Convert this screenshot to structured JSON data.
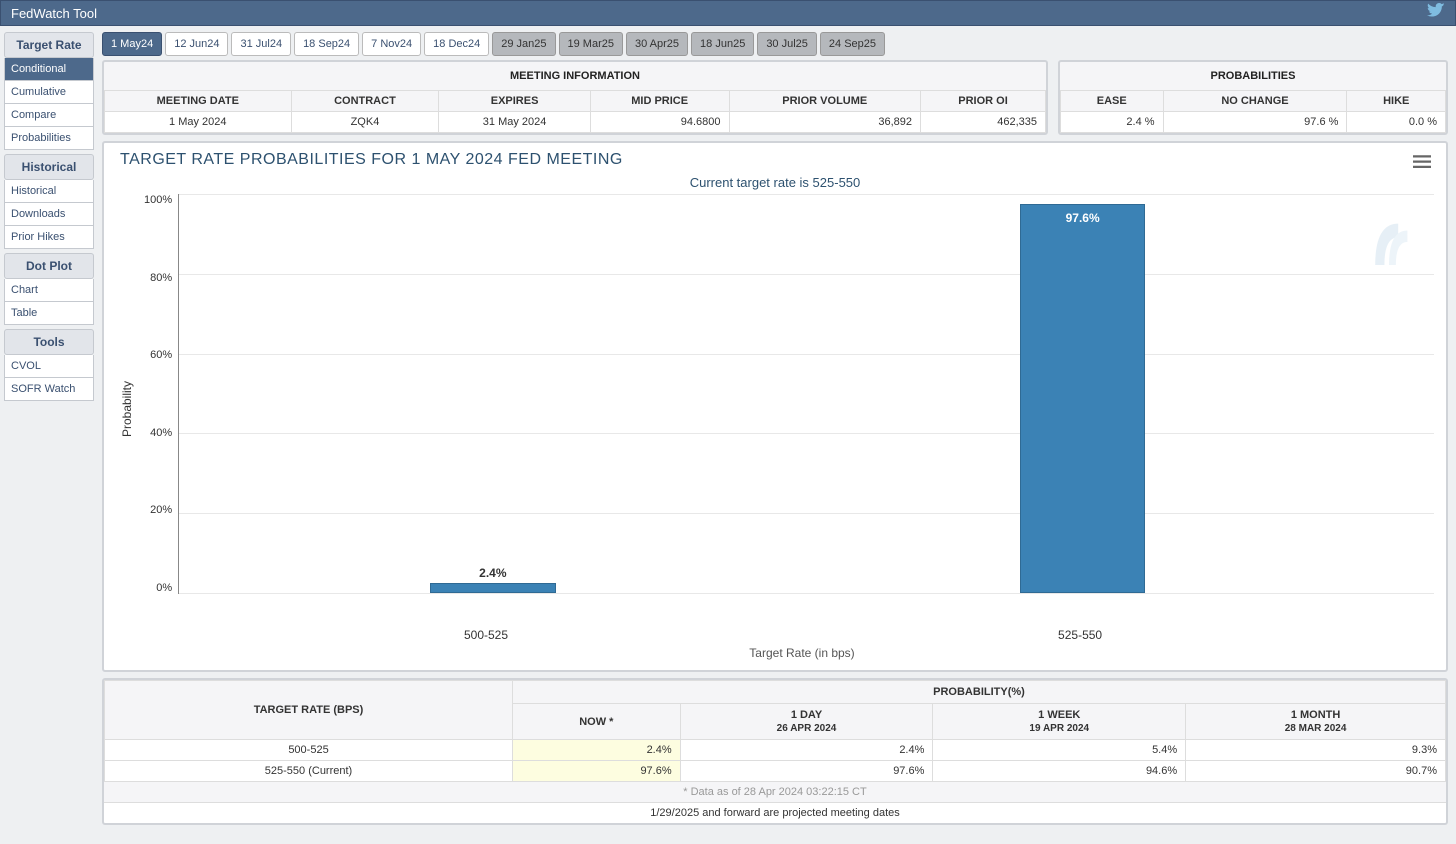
{
  "header": {
    "title": "FedWatch Tool"
  },
  "sidebar": {
    "sections": [
      {
        "title": "Target Rate",
        "items": [
          "Conditional",
          "Cumulative",
          "Compare",
          "Probabilities"
        ],
        "active": 0
      },
      {
        "title": "Historical",
        "items": [
          "Historical",
          "Downloads",
          "Prior Hikes"
        ]
      },
      {
        "title": "Dot Plot",
        "items": [
          "Chart",
          "Table"
        ]
      },
      {
        "title": "Tools",
        "items": [
          "CVOL",
          "SOFR Watch"
        ]
      }
    ]
  },
  "tabs": {
    "items": [
      "1 May24",
      "12 Jun24",
      "31 Jul24",
      "18 Sep24",
      "7 Nov24",
      "18 Dec24",
      "29 Jan25",
      "19 Mar25",
      "30 Apr25",
      "18 Jun25",
      "30 Jul25",
      "24 Sep25"
    ],
    "active": 0,
    "projected_start": 6
  },
  "meeting_info": {
    "title": "MEETING INFORMATION",
    "headers": [
      "MEETING DATE",
      "CONTRACT",
      "EXPIRES",
      "MID PRICE",
      "PRIOR VOLUME",
      "PRIOR OI"
    ],
    "row": [
      "1 May 2024",
      "ZQK4",
      "31 May 2024",
      "94.6800",
      "36,892",
      "462,335"
    ],
    "right_align": [
      false,
      false,
      false,
      true,
      true,
      true
    ]
  },
  "probabilities_panel": {
    "title": "PROBABILITIES",
    "headers": [
      "EASE",
      "NO CHANGE",
      "HIKE"
    ],
    "row": [
      "2.4 %",
      "97.6 %",
      "0.0 %"
    ]
  },
  "chart": {
    "title": "TARGET RATE PROBABILITIES FOR 1 MAY 2024 FED MEETING",
    "subtitle": "Current target rate is 525-550",
    "type": "bar",
    "ylabel": "Probability",
    "xlabel": "Target Rate (in bps)",
    "ylim": [
      0,
      100
    ],
    "ytick_step": 20,
    "yticks": [
      "100%",
      "80%",
      "60%",
      "40%",
      "20%",
      "0%"
    ],
    "categories": [
      "500-525",
      "525-550"
    ],
    "values": [
      2.4,
      97.6
    ],
    "value_labels": [
      "2.4%",
      "97.6%"
    ],
    "bar_positions_pct": [
      25,
      72
    ],
    "bar_width_pct": 10,
    "bar_color": "#3b82b5",
    "bar_border": "#2f6a94",
    "label_colors": [
      "#333333",
      "#ffffff"
    ],
    "grid_color": "#e8e8e8",
    "background_color": "#ffffff"
  },
  "history_table": {
    "target_header": "TARGET RATE (BPS)",
    "prob_header": "PROBABILITY(%)",
    "columns": [
      {
        "label": "NOW *",
        "date": ""
      },
      {
        "label": "1 DAY",
        "date": "26 APR 2024"
      },
      {
        "label": "1 WEEK",
        "date": "19 APR 2024"
      },
      {
        "label": "1 MONTH",
        "date": "28 MAR 2024"
      }
    ],
    "rows": [
      {
        "rate": "500-525",
        "vals": [
          "2.4%",
          "2.4%",
          "5.4%",
          "9.3%"
        ]
      },
      {
        "rate": "525-550 (Current)",
        "vals": [
          "97.6%",
          "97.6%",
          "94.6%",
          "90.7%"
        ]
      }
    ],
    "footnote": "* Data as of 28 Apr 2024 03:22:15 CT",
    "footnote2": "1/29/2025 and forward are projected meeting dates"
  }
}
